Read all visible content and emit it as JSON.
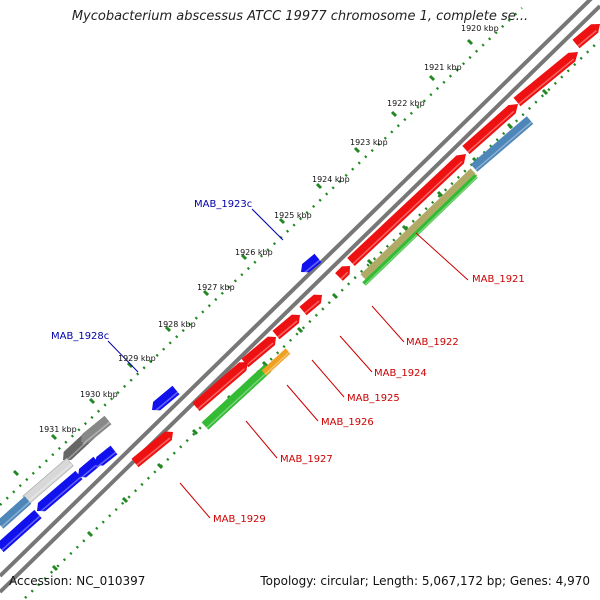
{
  "header": {
    "title": "Mycobacterium abscessus ATCC 19977 chromosome 1, complete se..."
  },
  "footer": {
    "accession": "Accession: NC_010397",
    "summary": "Topology: circular; Length: 5,067,172 bp; Genes: 4,970"
  },
  "colors": {
    "forward_gene": "#ee1111",
    "reverse_gene": "#1111ee",
    "pseudo_gene": "#888888",
    "cds_green": "#33bb33",
    "cds_blue": "#4d86b8",
    "cds_orange": "#f0a020",
    "forward_label": "#cc0000",
    "reverse_label": "#0000aa",
    "backbone": "#777777",
    "tick": "#228822"
  },
  "ticks": [
    {
      "label": "1920 kbp"
    },
    {
      "label": "1921 kbp"
    },
    {
      "label": "1922 kbp"
    },
    {
      "label": "1923 kbp"
    },
    {
      "label": "1924 kbp"
    },
    {
      "label": "1925 kbp"
    },
    {
      "label": "1926 kbp"
    },
    {
      "label": "1927 kbp"
    },
    {
      "label": "1928 kbp"
    },
    {
      "label": "1929 kbp"
    },
    {
      "label": "1930 kbp"
    },
    {
      "label": "1931 kbp"
    }
  ],
  "gene_labels": [
    {
      "name": "MAB_1921",
      "strand": "forward"
    },
    {
      "name": "MAB_1922",
      "strand": "forward"
    },
    {
      "name": "MAB_1924",
      "strand": "forward"
    },
    {
      "name": "MAB_1925",
      "strand": "forward"
    },
    {
      "name": "MAB_1926",
      "strand": "forward"
    },
    {
      "name": "MAB_1927",
      "strand": "forward"
    },
    {
      "name": "MAB_1929",
      "strand": "forward"
    },
    {
      "name": "MAB_1923c",
      "strand": "reverse"
    },
    {
      "name": "MAB_1928c",
      "strand": "reverse"
    }
  ]
}
